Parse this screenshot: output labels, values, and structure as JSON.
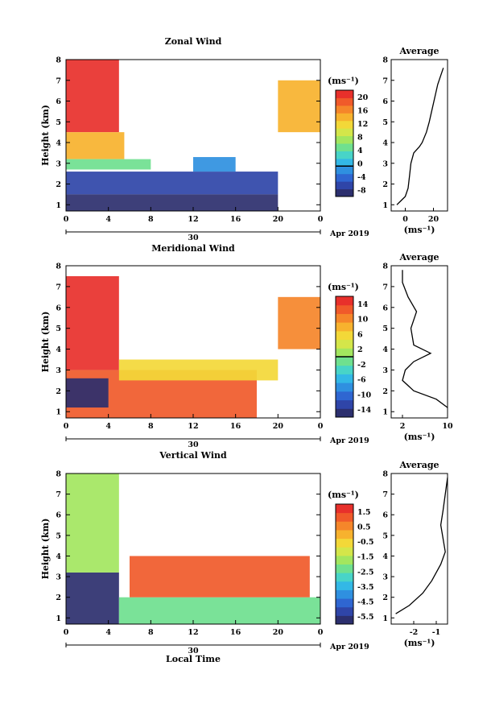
{
  "figure": {
    "date_label": "Apr 2019",
    "day_label": "30",
    "time_axis_label": "Local Time",
    "x_ticks": [
      "0",
      "4",
      "8",
      "12",
      "16",
      "20",
      "0"
    ],
    "height_label": "Height (km)",
    "height_ticks": [
      "1",
      "2",
      "3",
      "4",
      "5",
      "6",
      "7",
      "8"
    ],
    "unit_label": "(ms⁻¹)",
    "average_title": "Average"
  },
  "colors": {
    "jet": [
      "#2c2f6e",
      "#2f45a8",
      "#2f66d1",
      "#2f90e0",
      "#33b8e6",
      "#48d4c8",
      "#6fe08f",
      "#a3e65f",
      "#d4e64a",
      "#f3d838",
      "#f7b22e",
      "#f5862a",
      "#f05a2a",
      "#e8302b"
    ]
  },
  "chart_data": [
    {
      "type": "heatmap",
      "title": "Zonal Wind",
      "xlabel": "",
      "ylabel": "Height (km)",
      "xlim": [
        0,
        24
      ],
      "ylim": [
        0.7,
        8.0
      ],
      "colorbar": {
        "ticks": [
          "20",
          "16",
          "12",
          "8",
          "4",
          "0",
          "-4",
          "-8"
        ],
        "range": [
          -8,
          20
        ],
        "contour": 0
      },
      "zones": [
        {
          "x": [
            0,
            5
          ],
          "y": [
            4.5,
            8
          ],
          "value": 20
        },
        {
          "x": [
            0,
            5.5
          ],
          "y": [
            3.2,
            4.5
          ],
          "value": 13
        },
        {
          "x": [
            0,
            8
          ],
          "y": [
            2.7,
            3.2
          ],
          "value": 5
        },
        {
          "x": [
            0,
            20
          ],
          "y": [
            1.5,
            2.6
          ],
          "value": -5
        },
        {
          "x": [
            0,
            20
          ],
          "y": [
            0.7,
            1.5
          ],
          "value": -7
        },
        {
          "x": [
            12,
            16
          ],
          "y": [
            2.6,
            3.3
          ],
          "value": -2
        },
        {
          "x": [
            20,
            24
          ],
          "y": [
            4.5,
            7.0
          ],
          "value": 12
        }
      ],
      "profile": {
        "title": "Average",
        "xlabel": "(ms⁻¹)",
        "xticks": [
          "0",
          "20"
        ],
        "xlim": [
          -10,
          30
        ],
        "points": [
          [
            -6,
            1.0
          ],
          [
            -3,
            1.2
          ],
          [
            0,
            1.4
          ],
          [
            2,
            1.8
          ],
          [
            3,
            2.4
          ],
          [
            4,
            3.0
          ],
          [
            6,
            3.5
          ],
          [
            10,
            3.8
          ],
          [
            12,
            4.0
          ],
          [
            15,
            4.5
          ],
          [
            17,
            5.0
          ],
          [
            19,
            5.6
          ],
          [
            21,
            6.2
          ],
          [
            23,
            6.8
          ],
          [
            25,
            7.2
          ],
          [
            27,
            7.6
          ]
        ]
      }
    },
    {
      "type": "heatmap",
      "title": "Meridional Wind",
      "xlabel": "",
      "ylabel": "Height (km)",
      "xlim": [
        0,
        24
      ],
      "ylim": [
        0.7,
        8.0
      ],
      "colorbar": {
        "ticks": [
          "14",
          "10",
          "6",
          "2",
          "-2",
          "-6",
          "-10",
          "-14"
        ],
        "range": [
          -14,
          14
        ],
        "contour": 0
      },
      "zones": [
        {
          "x": [
            0,
            5
          ],
          "y": [
            3.0,
            7.5
          ],
          "value": 12
        },
        {
          "x": [
            0,
            18
          ],
          "y": [
            0.7,
            3.0
          ],
          "value": 10
        },
        {
          "x": [
            5,
            20
          ],
          "y": [
            2.5,
            3.5
          ],
          "value": 4
        },
        {
          "x": [
            0,
            4
          ],
          "y": [
            1.2,
            2.6
          ],
          "value": -14
        },
        {
          "x": [
            20,
            24
          ],
          "y": [
            4.0,
            6.5
          ],
          "value": 9
        }
      ],
      "profile": {
        "title": "Average",
        "xlabel": "(ms⁻¹)",
        "xticks": [
          "2",
          "10"
        ],
        "xlim": [
          0,
          10
        ],
        "points": [
          [
            10,
            1.2
          ],
          [
            8,
            1.6
          ],
          [
            4,
            2.0
          ],
          [
            2,
            2.5
          ],
          [
            2.5,
            3.0
          ],
          [
            4,
            3.4
          ],
          [
            7,
            3.8
          ],
          [
            4,
            4.2
          ],
          [
            3.5,
            5.0
          ],
          [
            4.5,
            5.8
          ],
          [
            3,
            6.5
          ],
          [
            2,
            7.2
          ],
          [
            2,
            7.8
          ]
        ]
      }
    },
    {
      "type": "heatmap",
      "title": "Vertical Wind",
      "xlabel": "Local Time",
      "ylabel": "Height (km)",
      "xlim": [
        0,
        24
      ],
      "ylim": [
        0.7,
        8.0
      ],
      "colorbar": {
        "ticks": [
          "1.5",
          "0.5",
          "-0.5",
          "-1.5",
          "-2.5",
          "-3.5",
          "-4.5",
          "-5.5"
        ],
        "range": [
          -5.5,
          1.5
        ]
      },
      "zones": [
        {
          "x": [
            0,
            5
          ],
          "y": [
            0.7,
            3.2
          ],
          "value": -5.5
        },
        {
          "x": [
            5,
            24
          ],
          "y": [
            0.7,
            2.0
          ],
          "value": -2.5
        },
        {
          "x": [
            6,
            23
          ],
          "y": [
            2.0,
            4.0
          ],
          "value": 0.5
        },
        {
          "x": [
            0,
            5
          ],
          "y": [
            3.2,
            8.0
          ],
          "value": -2.0
        }
      ],
      "profile": {
        "title": "Average",
        "xlabel": "(ms⁻¹)",
        "xticks": [
          "-2",
          "-1"
        ],
        "xlim": [
          -3,
          -0.5
        ],
        "points": [
          [
            -2.8,
            1.2
          ],
          [
            -2.2,
            1.6
          ],
          [
            -1.6,
            2.2
          ],
          [
            -1.2,
            2.8
          ],
          [
            -0.8,
            3.6
          ],
          [
            -0.6,
            4.2
          ],
          [
            -0.8,
            5.5
          ],
          [
            -0.7,
            6.2
          ],
          [
            -0.6,
            7.0
          ],
          [
            -0.5,
            7.8
          ]
        ]
      }
    }
  ]
}
